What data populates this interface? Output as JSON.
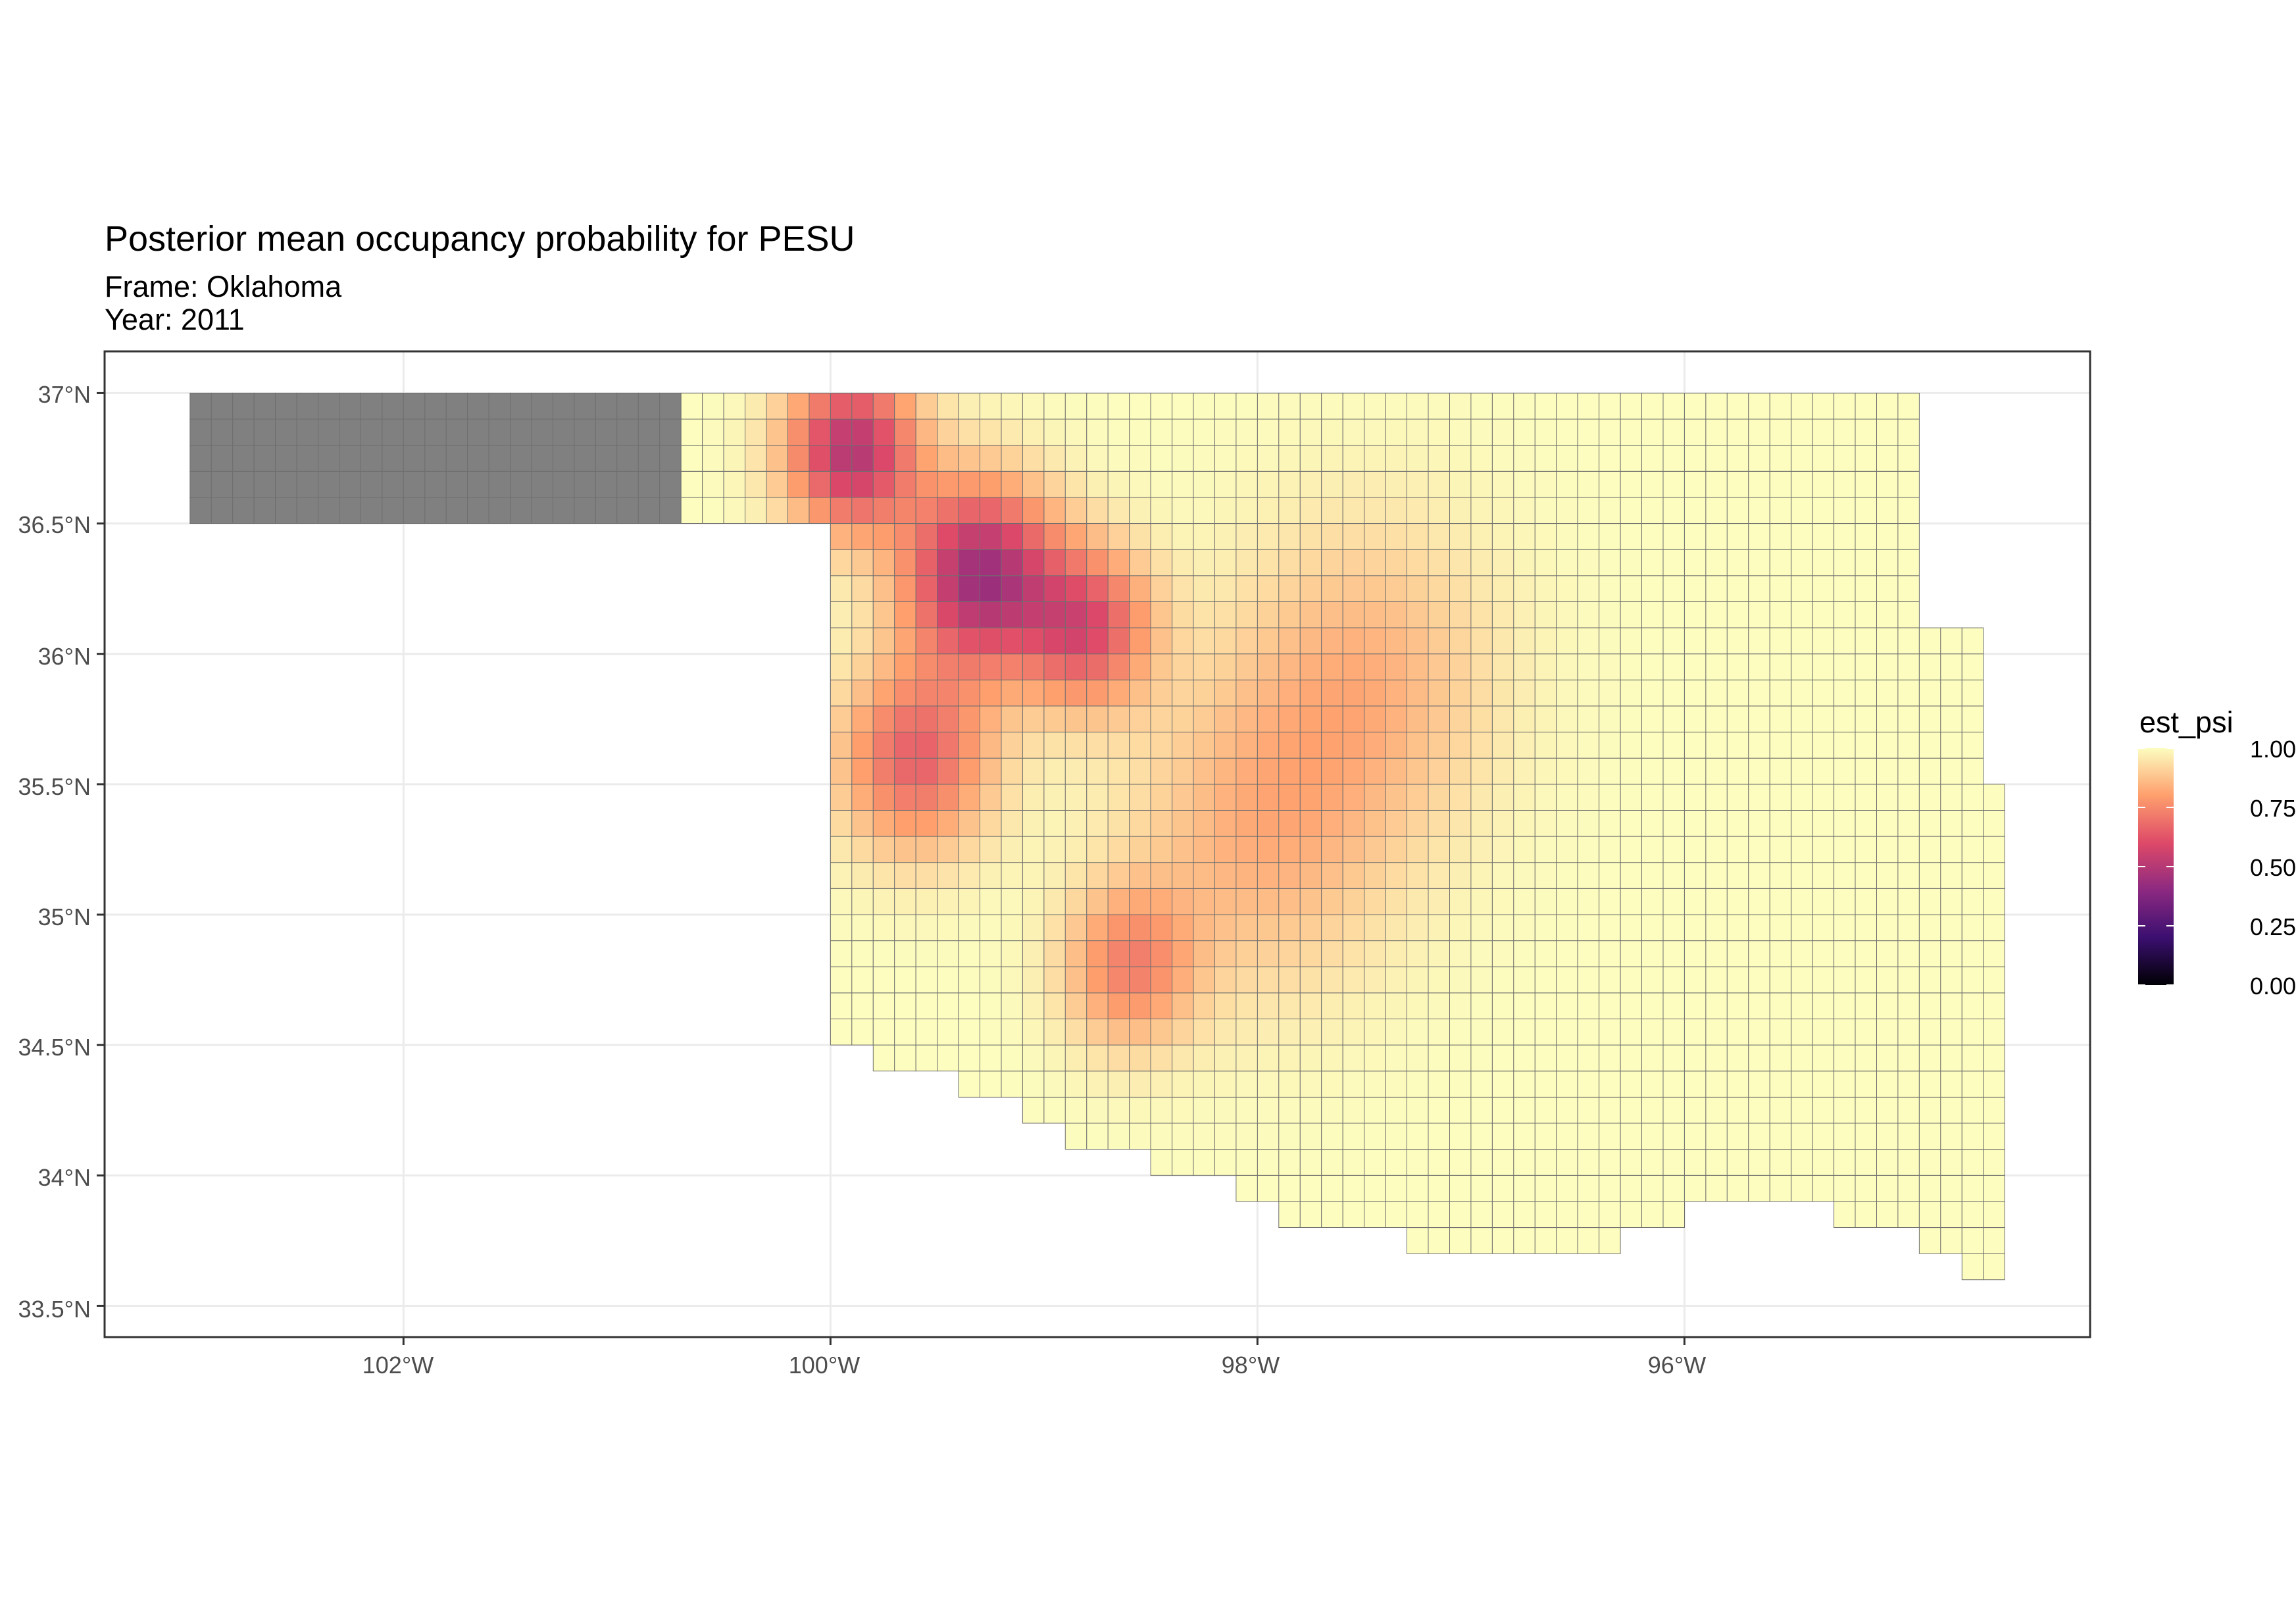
{
  "title": "Posterior mean occupancy probability for PESU",
  "subtitle_frame": "Frame: Oklahoma",
  "subtitle_year": "Year: 2011",
  "axes": {
    "lat_ticks": [
      {
        "value": 37.0,
        "label": "37°N"
      },
      {
        "value": 36.5,
        "label": "36.5°N"
      },
      {
        "value": 36.0,
        "label": "36°N"
      },
      {
        "value": 35.5,
        "label": "35.5°N"
      },
      {
        "value": 35.0,
        "label": "35°N"
      },
      {
        "value": 34.5,
        "label": "34.5°N"
      },
      {
        "value": 34.0,
        "label": "34°N"
      },
      {
        "value": 33.5,
        "label": "33.5°N"
      }
    ],
    "lon_ticks": [
      {
        "value": -102,
        "label": "102°W"
      },
      {
        "value": -100,
        "label": "100°W"
      },
      {
        "value": -98,
        "label": "98°W"
      },
      {
        "value": -96,
        "label": "96°W"
      }
    ],
    "lon_range": [
      -103.4,
      -94.1
    ],
    "lat_range": [
      33.38,
      37.16
    ]
  },
  "legend": {
    "title": "est_psi",
    "ticks": [
      "1.00",
      "0.75",
      "0.50",
      "0.25",
      "0.00"
    ],
    "scale": "magma",
    "range": [
      0,
      1
    ]
  },
  "colors": {
    "na_fill": "#808080",
    "cell_border": "#6e6e6e",
    "grid": "#ebebeb",
    "panel_border": "#333333"
  },
  "chart_data": {
    "type": "heatmap",
    "variable": "est_psi",
    "cell_size_deg": [
      0.1,
      0.1
    ],
    "low_hotspots": [
      {
        "lon": -99.3,
        "lat": 36.3,
        "value": 0.45,
        "spread": 0.35
      },
      {
        "lon": -99.9,
        "lat": 36.78,
        "value": 0.5,
        "spread": 0.3
      },
      {
        "lon": -98.8,
        "lat": 36.1,
        "value": 0.62,
        "spread": 0.3
      },
      {
        "lon": -99.6,
        "lat": 35.6,
        "value": 0.66,
        "spread": 0.35
      },
      {
        "lon": -98.6,
        "lat": 34.8,
        "value": 0.75,
        "spread": 0.3
      },
      {
        "lon": -97.5,
        "lat": 35.9,
        "value": 0.85,
        "spread": 0.6
      },
      {
        "lon": -98.0,
        "lat": 35.3,
        "value": 0.85,
        "spread": 0.6
      }
    ],
    "missing_region": "Oklahoma panhandle west of 100.7°W (NA)"
  }
}
